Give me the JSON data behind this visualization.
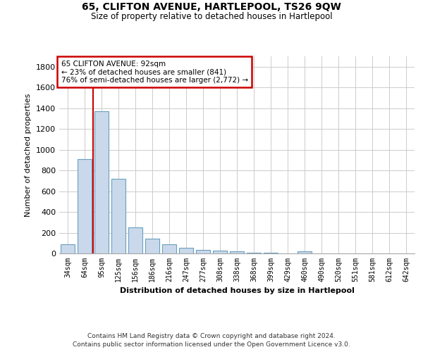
{
  "title": "65, CLIFTON AVENUE, HARTLEPOOL, TS26 9QW",
  "subtitle": "Size of property relative to detached houses in Hartlepool",
  "xlabel": "Distribution of detached houses by size in Hartlepool",
  "ylabel": "Number of detached properties",
  "categories": [
    "34sqm",
    "64sqm",
    "95sqm",
    "125sqm",
    "156sqm",
    "186sqm",
    "216sqm",
    "247sqm",
    "277sqm",
    "308sqm",
    "338sqm",
    "368sqm",
    "399sqm",
    "429sqm",
    "460sqm",
    "490sqm",
    "520sqm",
    "551sqm",
    "581sqm",
    "612sqm",
    "642sqm"
  ],
  "values": [
    85,
    910,
    1370,
    720,
    250,
    140,
    85,
    55,
    35,
    30,
    20,
    10,
    10,
    0,
    20,
    0,
    0,
    0,
    0,
    0,
    0
  ],
  "bar_color": "#c9d9eb",
  "bar_edge_color": "#6a9fc0",
  "highlight_bar_index": 2,
  "vline_color": "#cc0000",
  "annotation_text": "65 CLIFTON AVENUE: 92sqm\n← 23% of detached houses are smaller (841)\n76% of semi-detached houses are larger (2,772) →",
  "annotation_box_color": "#cc0000",
  "ylim": [
    0,
    1900
  ],
  "yticks": [
    0,
    200,
    400,
    600,
    800,
    1000,
    1200,
    1400,
    1600,
    1800
  ],
  "background_color": "#ffffff",
  "grid_color": "#cccccc",
  "footer_line1": "Contains HM Land Registry data © Crown copyright and database right 2024.",
  "footer_line2": "Contains public sector information licensed under the Open Government Licence v3.0."
}
